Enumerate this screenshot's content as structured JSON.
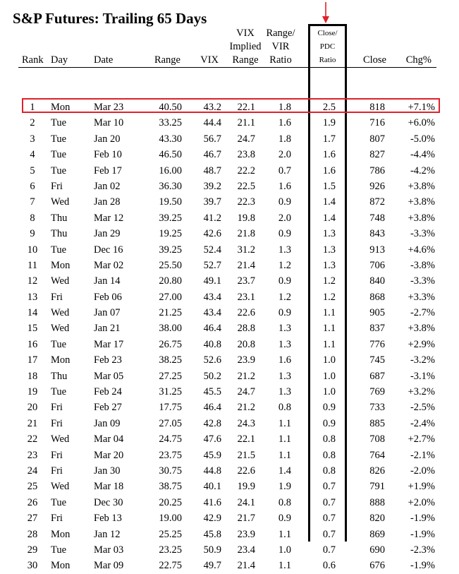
{
  "title": "S&P Futures: Trailing 65 Days",
  "headers": {
    "rank": "Rank",
    "day": "Day",
    "date": "Date",
    "range": "Range",
    "vix": "VIX",
    "vix_implied_1": "VIX",
    "vix_implied_2": "Implied",
    "vix_implied_3": "Range",
    "range_vir_1": "Range/",
    "range_vir_2": "VIR",
    "range_vir_3": "Ratio",
    "close_pdc_1": "Close/",
    "close_pdc_2": "PDC",
    "close_pdc_3": "Ratio",
    "close": "Close",
    "chg": "Chg%"
  },
  "colors": {
    "highlight_border": "#e0202a",
    "arrow": "#e0202a"
  },
  "rows": [
    [
      "1",
      "Mon",
      "Mar 23",
      "40.50",
      "43.2",
      "22.1",
      "1.8",
      "2.5",
      "818",
      "+7.1%"
    ],
    [
      "2",
      "Tue",
      "Mar 10",
      "33.25",
      "44.4",
      "21.1",
      "1.6",
      "1.9",
      "716",
      "+6.0%"
    ],
    [
      "3",
      "Tue",
      "Jan 20",
      "43.30",
      "56.7",
      "24.7",
      "1.8",
      "1.7",
      "807",
      "-5.0%"
    ],
    [
      "4",
      "Tue",
      "Feb 10",
      "46.50",
      "46.7",
      "23.8",
      "2.0",
      "1.6",
      "827",
      "-4.4%"
    ],
    [
      "5",
      "Tue",
      "Feb 17",
      "16.00",
      "48.7",
      "22.2",
      "0.7",
      "1.6",
      "786",
      "-4.2%"
    ],
    [
      "6",
      "Fri",
      "Jan 02",
      "36.30",
      "39.2",
      "22.5",
      "1.6",
      "1.5",
      "926",
      "+3.8%"
    ],
    [
      "7",
      "Wed",
      "Jan 28",
      "19.50",
      "39.7",
      "22.3",
      "0.9",
      "1.4",
      "872",
      "+3.8%"
    ],
    [
      "8",
      "Thu",
      "Mar 12",
      "39.25",
      "41.2",
      "19.8",
      "2.0",
      "1.4",
      "748",
      "+3.8%"
    ],
    [
      "9",
      "Thu",
      "Jan 29",
      "19.25",
      "42.6",
      "21.8",
      "0.9",
      "1.3",
      "843",
      "-3.3%"
    ],
    [
      "10",
      "Tue",
      "Dec 16",
      "39.25",
      "52.4",
      "31.2",
      "1.3",
      "1.3",
      "913",
      "+4.6%"
    ],
    [
      "11",
      "Mon",
      "Mar 02",
      "25.50",
      "52.7",
      "21.4",
      "1.2",
      "1.3",
      "706",
      "-3.8%"
    ],
    [
      "12",
      "Wed",
      "Jan 14",
      "20.80",
      "49.1",
      "23.7",
      "0.9",
      "1.2",
      "840",
      "-3.3%"
    ],
    [
      "13",
      "Fri",
      "Feb 06",
      "27.00",
      "43.4",
      "23.1",
      "1.2",
      "1.2",
      "868",
      "+3.3%"
    ],
    [
      "14",
      "Wed",
      "Jan 07",
      "21.25",
      "43.4",
      "22.6",
      "0.9",
      "1.1",
      "905",
      "-2.7%"
    ],
    [
      "15",
      "Wed",
      "Jan 21",
      "38.00",
      "46.4",
      "28.8",
      "1.3",
      "1.1",
      "837",
      "+3.8%"
    ],
    [
      "16",
      "Tue",
      "Mar 17",
      "26.75",
      "40.8",
      "20.8",
      "1.3",
      "1.1",
      "776",
      "+2.9%"
    ],
    [
      "17",
      "Mon",
      "Feb 23",
      "38.25",
      "52.6",
      "23.9",
      "1.6",
      "1.0",
      "745",
      "-3.2%"
    ],
    [
      "18",
      "Thu",
      "Mar 05",
      "27.25",
      "50.2",
      "21.2",
      "1.3",
      "1.0",
      "687",
      "-3.1%"
    ],
    [
      "19",
      "Tue",
      "Feb 24",
      "31.25",
      "45.5",
      "24.7",
      "1.3",
      "1.0",
      "769",
      "+3.2%"
    ],
    [
      "20",
      "Fri",
      "Feb 27",
      "17.75",
      "46.4",
      "21.2",
      "0.8",
      "0.9",
      "733",
      "-2.5%"
    ],
    [
      "21",
      "Fri",
      "Jan 09",
      "27.05",
      "42.8",
      "24.3",
      "1.1",
      "0.9",
      "885",
      "-2.4%"
    ],
    [
      "22",
      "Wed",
      "Mar 04",
      "24.75",
      "47.6",
      "22.1",
      "1.1",
      "0.8",
      "708",
      "+2.7%"
    ],
    [
      "23",
      "Fri",
      "Mar 20",
      "23.75",
      "45.9",
      "21.5",
      "1.1",
      "0.8",
      "764",
      "-2.1%"
    ],
    [
      "24",
      "Fri",
      "Jan 30",
      "30.75",
      "44.8",
      "22.6",
      "1.4",
      "0.8",
      "826",
      "-2.0%"
    ],
    [
      "25",
      "Wed",
      "Mar 18",
      "38.75",
      "40.1",
      "19.9",
      "1.9",
      "0.7",
      "791",
      "+1.9%"
    ],
    [
      "26",
      "Tue",
      "Dec 30",
      "20.25",
      "41.6",
      "24.1",
      "0.8",
      "0.7",
      "888",
      "+2.0%"
    ],
    [
      "27",
      "Fri",
      "Feb 13",
      "19.00",
      "42.9",
      "21.7",
      "0.9",
      "0.7",
      "820",
      "-1.9%"
    ],
    [
      "28",
      "Mon",
      "Jan 12",
      "25.25",
      "45.8",
      "23.9",
      "1.1",
      "0.7",
      "869",
      "-1.9%"
    ],
    [
      "29",
      "Tue",
      "Mar 03",
      "23.25",
      "50.9",
      "23.4",
      "1.0",
      "0.7",
      "690",
      "-2.3%"
    ],
    [
      "30",
      "Mon",
      "Mar 09",
      "22.75",
      "49.7",
      "21.4",
      "1.1",
      "0.6",
      "676",
      "-1.9%"
    ]
  ]
}
